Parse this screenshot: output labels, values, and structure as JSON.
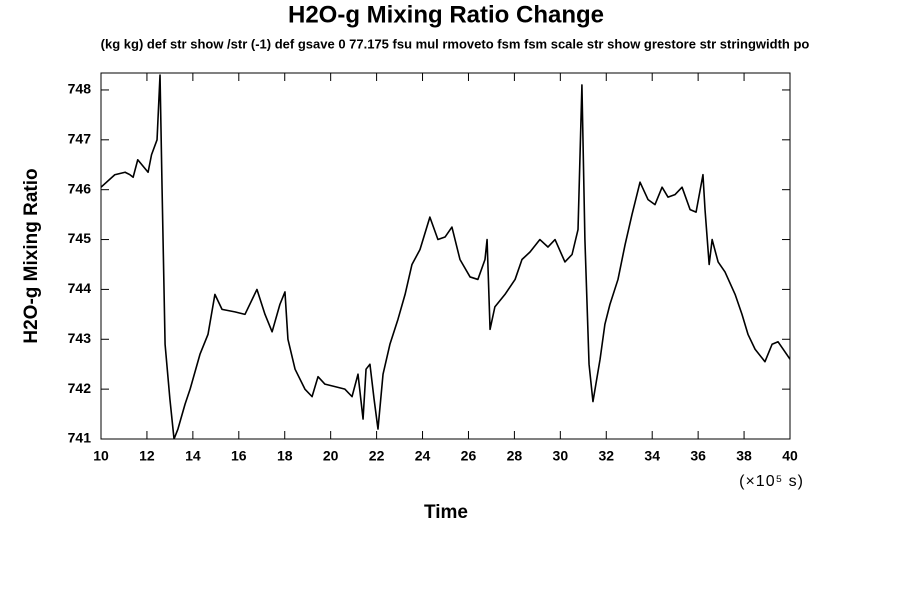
{
  "chart_data": {
    "type": "line",
    "title": "H2O-g Mixing Ratio Change",
    "subtitle": "(kg kg) def str show /str (-1) def gsave 0 77.175 fsu mul rmoveto fsm fsm scale str show grestore str stringwidth po",
    "x_label": "Time",
    "y_label": "H2O-g Mixing Ratio",
    "x_unit": "(×10⁵ s)",
    "color": "#000000",
    "x": [
      10,
      10.6,
      11.05,
      11.26,
      11.4,
      11.6,
      12.05,
      12.2,
      12.44,
      12.57,
      12.66,
      12.79,
      13.0,
      13.18,
      13.35,
      13.66,
      13.88,
      14.31,
      14.66,
      14.96,
      15.27,
      15.83,
      16.27,
      16.79,
      17.14,
      17.45,
      17.79,
      18.01,
      18.14,
      18.45,
      18.88,
      19.19,
      19.45,
      19.75,
      20.19,
      20.62,
      20.93,
      21.19,
      21.41,
      21.54,
      21.71,
      21.89,
      22.06,
      22.28,
      22.58,
      22.93,
      23.24,
      23.54,
      23.89,
      24.32,
      24.67,
      24.98,
      25.28,
      25.63,
      26.07,
      26.41,
      26.72,
      26.81,
      26.94,
      27.15,
      27.59,
      28.03,
      28.33,
      28.68,
      29.11,
      29.46,
      29.77,
      30.2,
      30.51,
      30.77,
      30.94,
      31.07,
      31.25,
      31.42,
      31.73,
      31.94,
      32.16,
      32.51,
      32.82,
      33.12,
      33.47,
      33.82,
      34.12,
      34.43,
      34.69,
      34.99,
      35.3,
      35.65,
      35.91,
      36.21,
      36.3,
      36.48,
      36.61,
      36.87,
      37.17,
      37.61,
      37.91,
      38.17,
      38.48,
      38.91,
      39.22,
      39.48,
      40
    ],
    "values": [
      746.05,
      746.3,
      746.35,
      746.3,
      746.25,
      746.6,
      746.35,
      746.7,
      747.0,
      748.3,
      746.0,
      742.9,
      741.8,
      741.0,
      741.2,
      741.7,
      742.0,
      742.7,
      743.1,
      743.9,
      743.6,
      743.55,
      743.5,
      744.0,
      743.5,
      743.15,
      743.7,
      743.95,
      743.0,
      742.4,
      742.0,
      741.85,
      742.25,
      742.1,
      742.05,
      742.0,
      741.85,
      742.3,
      741.4,
      742.4,
      742.5,
      741.8,
      741.2,
      742.3,
      742.9,
      743.4,
      743.9,
      744.5,
      744.8,
      745.45,
      745.0,
      745.05,
      745.25,
      744.6,
      744.25,
      744.2,
      744.6,
      745.0,
      743.2,
      743.65,
      743.9,
      744.2,
      744.6,
      744.75,
      745.0,
      744.85,
      745.0,
      744.55,
      744.7,
      745.2,
      748.1,
      745.0,
      742.5,
      741.75,
      742.6,
      743.3,
      743.7,
      744.2,
      744.9,
      745.5,
      746.15,
      745.8,
      745.7,
      746.05,
      745.85,
      745.9,
      746.05,
      745.6,
      745.55,
      746.3,
      745.6,
      744.5,
      745.0,
      744.55,
      744.35,
      743.9,
      743.5,
      743.1,
      742.8,
      742.55,
      742.9,
      742.95,
      742.6
    ],
    "xlim": [
      10,
      40
    ],
    "ylim": [
      741,
      748.34
    ],
    "xticks": [
      10,
      12,
      14,
      16,
      18,
      20,
      22,
      24,
      26,
      28,
      30,
      32,
      34,
      36,
      38,
      40
    ],
    "yticks": [
      741,
      742,
      743,
      744,
      745,
      746,
      747,
      748
    ],
    "grid": false
  }
}
